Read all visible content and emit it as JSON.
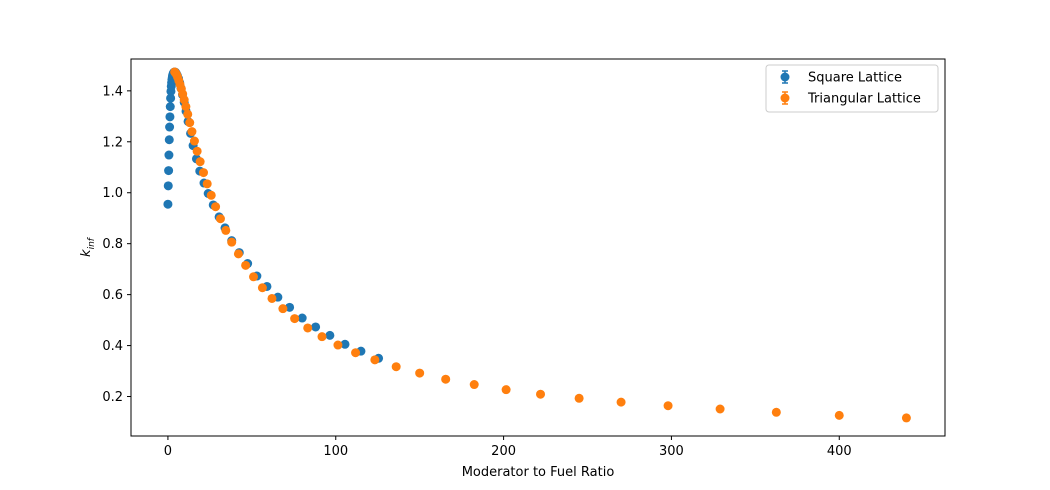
{
  "chart_data": {
    "type": "scatter",
    "title": "",
    "xlabel": "Moderator to Fuel Ratio",
    "ylabel": {
      "base": "k",
      "sub": "inf"
    },
    "xlim": [
      -22,
      463
    ],
    "ylim": [
      0.045,
      1.525
    ],
    "xticks": [
      0,
      100,
      200,
      300,
      400
    ],
    "xtick_labels": [
      "0",
      "100",
      "200",
      "300",
      "400"
    ],
    "yticks": [
      0.2,
      0.4,
      0.6,
      0.8,
      1.0,
      1.2,
      1.4
    ],
    "ytick_labels": [
      "0.2",
      "0.4",
      "0.6",
      "0.8",
      "1.0",
      "1.2",
      "1.4"
    ],
    "grid": false,
    "legend": "top-right",
    "series": [
      {
        "name": "Square Lattice",
        "color": "#1f77b4",
        "x": [
          0.0,
          0.2,
          0.4,
          0.6,
          0.8,
          1.0,
          1.2,
          1.4,
          1.6,
          1.8,
          2.0,
          2.2,
          2.4,
          2.6,
          2.8,
          3.0,
          3.3,
          3.6,
          4.0,
          4.5,
          5.0,
          5.6,
          6.3,
          7.0,
          7.8,
          8.7,
          9.7,
          10.8,
          12.0,
          13.5,
          15.0,
          17.0,
          19.0,
          21.5,
          24.0,
          27.0,
          30.5,
          34.0,
          38.0,
          42.5,
          47.5,
          53.0,
          59.0,
          65.5,
          72.5,
          80.0,
          88.0,
          96.5,
          105.5,
          115.0,
          125.5
        ],
        "y": [
          0.955,
          1.027,
          1.087,
          1.148,
          1.208,
          1.258,
          1.298,
          1.338,
          1.371,
          1.398,
          1.418,
          1.432,
          1.444,
          1.453,
          1.46,
          1.465,
          1.47,
          1.473,
          1.474,
          1.473,
          1.468,
          1.46,
          1.448,
          1.432,
          1.41,
          1.385,
          1.355,
          1.32,
          1.28,
          1.233,
          1.185,
          1.133,
          1.085,
          1.038,
          0.997,
          0.952,
          0.905,
          0.862,
          0.812,
          0.765,
          0.722,
          0.673,
          0.632,
          0.59,
          0.55,
          0.508,
          0.473,
          0.44,
          0.405,
          0.378,
          0.35
        ]
      },
      {
        "name": "Triangular Lattice",
        "color": "#ff7f0e",
        "x": [
          4.0,
          4.6,
          5.2,
          5.8,
          6.5,
          7.2,
          8.0,
          8.8,
          9.7,
          10.7,
          11.8,
          13.0,
          14.3,
          15.8,
          17.4,
          19.2,
          21.2,
          23.4,
          25.8,
          28.4,
          31.3,
          34.5,
          38.0,
          42.0,
          46.3,
          51.0,
          56.3,
          62.0,
          68.5,
          75.5,
          83.3,
          91.8,
          101.3,
          111.8,
          123.3,
          136.0,
          150.0,
          165.5,
          182.5,
          201.5,
          222.0,
          245.0,
          270.0,
          298.0,
          329.0,
          362.5,
          400.0,
          440.0
        ],
        "y": [
          1.474,
          1.47,
          1.463,
          1.453,
          1.44,
          1.425,
          1.408,
          1.388,
          1.365,
          1.338,
          1.308,
          1.275,
          1.24,
          1.203,
          1.163,
          1.122,
          1.079,
          1.035,
          0.99,
          0.945,
          0.898,
          0.852,
          0.806,
          0.76,
          0.715,
          0.67,
          0.627,
          0.585,
          0.545,
          0.506,
          0.469,
          0.435,
          0.402,
          0.372,
          0.344,
          0.317,
          0.292,
          0.268,
          0.247,
          0.227,
          0.209,
          0.193,
          0.178,
          0.164,
          0.151,
          0.138,
          0.126,
          0.116
        ]
      }
    ]
  }
}
